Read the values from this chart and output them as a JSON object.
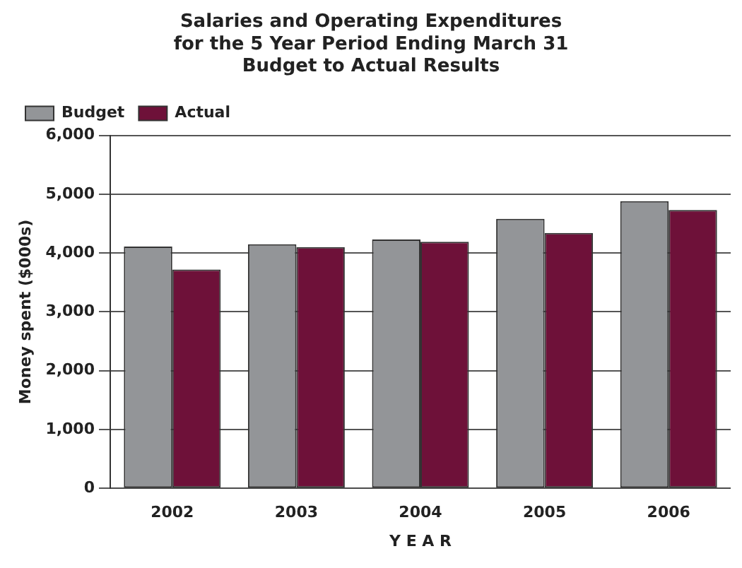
{
  "chart_data": {
    "type": "bar",
    "title": "Salaries and Operating Expenditures\nfor the 5 Year Period Ending March 31\nBudget to Actual Results",
    "xlabel": "Y E A R",
    "ylabel": "Money spent ($000s)",
    "categories": [
      "2002",
      "2003",
      "2004",
      "2005",
      "2006"
    ],
    "series": [
      {
        "name": "Budget",
        "color": "#939598",
        "values": [
          4110,
          4150,
          4230,
          4580,
          4880
        ]
      },
      {
        "name": "Actual",
        "color": "#6e1139",
        "values": [
          3720,
          4100,
          4190,
          4340,
          4730
        ]
      }
    ],
    "ylim": [
      0,
      6000
    ],
    "yticks": [
      {
        "value": 0,
        "label": "0"
      },
      {
        "value": 1000,
        "label": "1,000"
      },
      {
        "value": 2000,
        "label": "2,000"
      },
      {
        "value": 3000,
        "label": "3,000"
      },
      {
        "value": 4000,
        "label": "4,000"
      },
      {
        "value": 5000,
        "label": "5,000"
      },
      {
        "value": 6000,
        "label": "6,000"
      }
    ],
    "grid": "y",
    "legend": "top left"
  }
}
